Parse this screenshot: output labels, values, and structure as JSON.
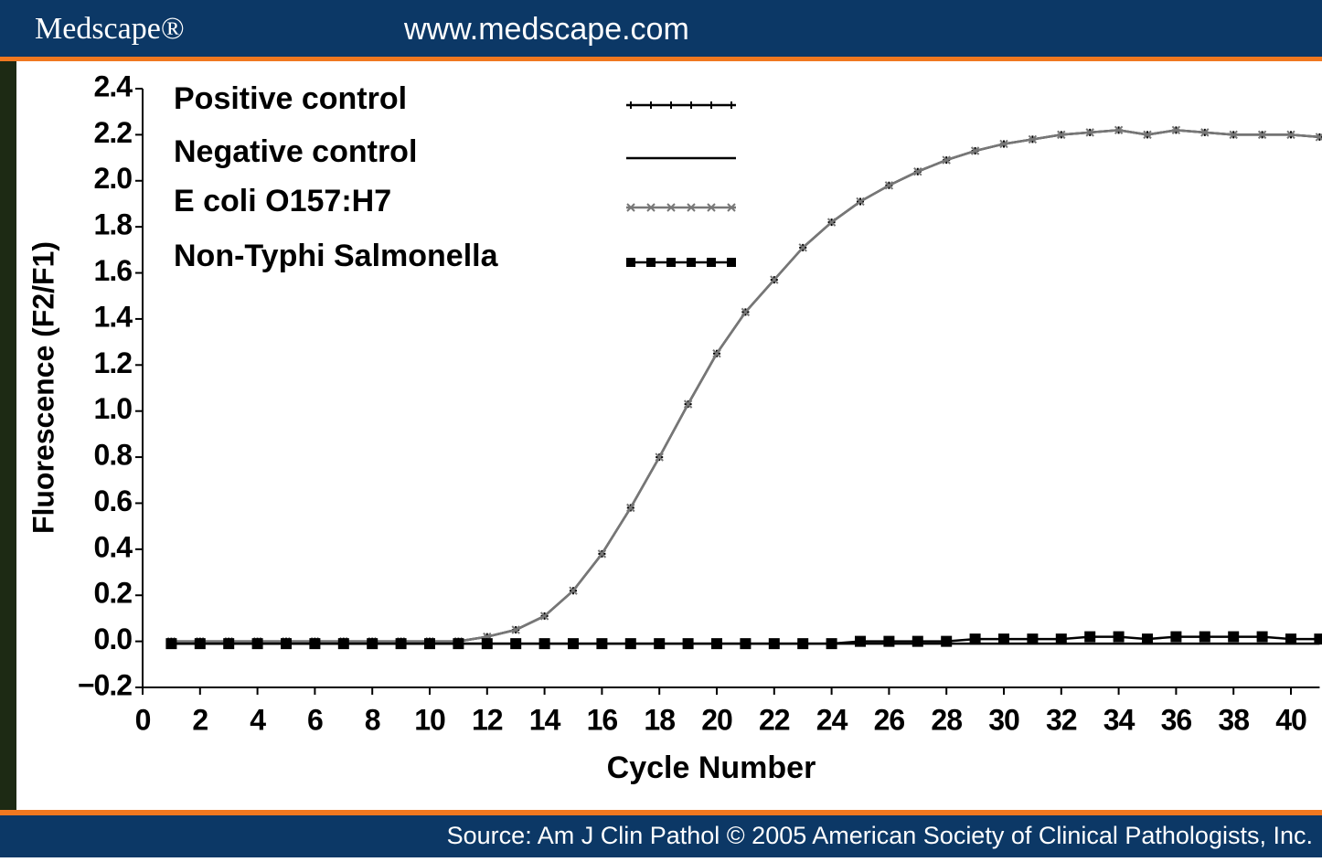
{
  "page": {
    "logo": "Medscape®",
    "url": "www.medscape.com",
    "source": "Source: Am J Clin Pathol © 2005 American Society of Clinical Pathologists, Inc."
  },
  "chart_data": {
    "type": "line",
    "x_label": "Cycle Number",
    "y_label": "Fluorescence (F2/F1)",
    "x": [
      1,
      2,
      3,
      4,
      5,
      6,
      7,
      8,
      9,
      10,
      11,
      12,
      13,
      14,
      15,
      16,
      17,
      18,
      19,
      20,
      21,
      22,
      23,
      24,
      25,
      26,
      27,
      28,
      29,
      30,
      31,
      32,
      33,
      34,
      35,
      36,
      37,
      38,
      39,
      40,
      41
    ],
    "series": [
      {
        "name": "Positive control",
        "color": "#000000",
        "marker": "plus",
        "values": [
          0,
          0,
          0,
          0,
          0,
          0,
          0,
          0,
          0,
          0,
          0,
          0.02,
          0.05,
          0.11,
          0.22,
          0.38,
          0.58,
          0.8,
          1.03,
          1.25,
          1.43,
          1.57,
          1.71,
          1.82,
          1.91,
          1.98,
          2.04,
          2.09,
          2.13,
          2.16,
          2.18,
          2.2,
          2.21,
          2.22,
          2.2,
          2.22,
          2.21,
          2.2,
          2.2,
          2.2,
          2.19
        ]
      },
      {
        "name": "Negative control",
        "color": "#000000",
        "marker": "none",
        "values": [
          -0.01,
          -0.01,
          -0.01,
          -0.01,
          -0.01,
          -0.01,
          -0.01,
          -0.01,
          -0.01,
          -0.01,
          -0.01,
          -0.01,
          -0.01,
          -0.01,
          -0.01,
          -0.01,
          -0.01,
          -0.01,
          -0.01,
          -0.01,
          -0.01,
          -0.01,
          -0.01,
          -0.01,
          -0.01,
          -0.01,
          -0.01,
          -0.01,
          -0.01,
          -0.01,
          -0.01,
          -0.01,
          -0.01,
          -0.01,
          -0.01,
          -0.01,
          -0.01,
          -0.01,
          -0.01,
          -0.01,
          -0.01
        ]
      },
      {
        "name": "E coli O157:H7",
        "color": "#777777",
        "marker": "cross",
        "values": [
          0,
          0,
          0,
          0,
          0,
          0,
          0,
          0,
          0,
          0,
          0,
          0.02,
          0.05,
          0.11,
          0.22,
          0.38,
          0.58,
          0.8,
          1.03,
          1.25,
          1.43,
          1.57,
          1.71,
          1.82,
          1.91,
          1.98,
          2.04,
          2.09,
          2.13,
          2.16,
          2.18,
          2.2,
          2.21,
          2.22,
          2.2,
          2.22,
          2.21,
          2.2,
          2.2,
          2.2,
          2.19
        ]
      },
      {
        "name": "Non-Typhi Salmonella",
        "color": "#000000",
        "marker": "square",
        "values": [
          -0.01,
          -0.01,
          -0.01,
          -0.01,
          -0.01,
          -0.01,
          -0.01,
          -0.01,
          -0.01,
          -0.01,
          -0.01,
          -0.01,
          -0.01,
          -0.01,
          -0.01,
          -0.01,
          -0.01,
          -0.01,
          -0.01,
          -0.01,
          -0.01,
          -0.01,
          -0.01,
          -0.01,
          0,
          0,
          0,
          0,
          0.01,
          0.01,
          0.01,
          0.01,
          0.02,
          0.02,
          0.01,
          0.02,
          0.02,
          0.02,
          0.02,
          0.01,
          0.01
        ]
      }
    ],
    "xlim": [
      0,
      41
    ],
    "ylim": [
      -0.2,
      2.4
    ],
    "xticks": [
      0,
      2,
      4,
      6,
      8,
      10,
      12,
      14,
      16,
      18,
      20,
      22,
      24,
      26,
      28,
      30,
      32,
      34,
      36,
      38,
      40
    ],
    "yticks": [
      {
        "value": -0.2,
        "label": "−0.2"
      },
      {
        "value": 0,
        "label": "0.0"
      },
      0.2,
      0.4,
      0.6,
      0.8,
      {
        "value": 1,
        "label": "1.0"
      },
      1.2,
      1.4,
      1.6,
      1.8,
      {
        "value": 2,
        "label": "2.0"
      },
      2.2,
      2.4
    ],
    "legend": "upper left"
  }
}
